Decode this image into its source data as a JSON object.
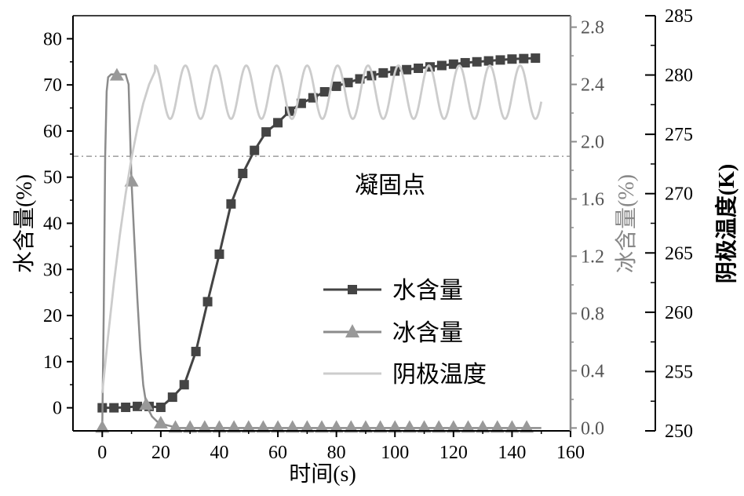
{
  "chart_data": {
    "type": "line",
    "xlabel": "时间(s)",
    "xlim": [
      -10,
      160
    ],
    "xticks": [
      0,
      20,
      40,
      60,
      80,
      100,
      120,
      140,
      160
    ],
    "axes": {
      "left": {
        "label": "水含量(%)",
        "ylim": [
          -5,
          85
        ],
        "ticks": [
          0,
          10,
          20,
          30,
          40,
          50,
          60,
          70,
          80
        ]
      },
      "right1": {
        "label": "冰含量(%)",
        "ylim": [
          -0.02,
          2.88
        ],
        "ticks": [
          "0.0",
          "0.4",
          "0.8",
          "1.2",
          "1.6",
          "2.0",
          "2.4",
          "2.8"
        ]
      },
      "right2": {
        "label": "阴极温度(K)",
        "ylim": [
          250,
          285
        ],
        "ticks": [
          250,
          255,
          260,
          265,
          270,
          275,
          280,
          285
        ]
      }
    },
    "reference_line": {
      "label": "凝固点",
      "value": 273.15,
      "axis": "right2"
    },
    "legend_position": "bottom-center",
    "series": [
      {
        "name": "水含量",
        "axis": "left",
        "color": "#444444",
        "marker": "square",
        "x": [
          0,
          4,
          8,
          12,
          16,
          20,
          24,
          28,
          32,
          36,
          40,
          44,
          48,
          52,
          56,
          60,
          64,
          68,
          72,
          76,
          80,
          84,
          88,
          92,
          96,
          100,
          104,
          108,
          112,
          116,
          120,
          124,
          128,
          132,
          136,
          140,
          144,
          148
        ],
        "y": [
          0,
          0,
          0.1,
          0.3,
          0.3,
          0.1,
          2.3,
          5,
          12.2,
          23,
          33.3,
          44.2,
          50.8,
          55.8,
          59.8,
          61.8,
          64.3,
          66,
          67.2,
          68.5,
          69.7,
          70.5,
          71.3,
          72,
          72.6,
          73,
          73.3,
          73.6,
          73.9,
          74.2,
          74.5,
          74.8,
          75,
          75.2,
          75.4,
          75.6,
          75.7,
          75.8
        ]
      },
      {
        "name": "冰含量",
        "axis": "right1",
        "color": "#8c8c8c",
        "marker": "triangle",
        "x": [
          0,
          0.5,
          1,
          1.5,
          2,
          2.5,
          3,
          5,
          7,
          8,
          9,
          10,
          11,
          12,
          13,
          14,
          15,
          16,
          17,
          18,
          19,
          20,
          22,
          24,
          26,
          150
        ],
        "y": [
          0,
          0.8,
          1.9,
          2.35,
          2.45,
          2.46,
          2.47,
          2.47,
          2.47,
          2.47,
          2.4,
          1.72,
          1.3,
          0.9,
          0.55,
          0.3,
          0.17,
          0.12,
          0.08,
          0.06,
          0.04,
          0.03,
          0.02,
          0.01,
          0,
          0
        ],
        "markers_x": [
          0,
          5,
          10,
          15,
          20,
          25,
          30,
          35,
          40,
          45,
          50,
          55,
          60,
          65,
          70,
          75,
          80,
          85,
          90,
          95,
          100,
          105,
          110,
          115,
          120,
          125,
          130,
          135,
          140,
          145
        ],
        "markers_y": [
          0,
          2.46,
          1.72,
          0.16,
          0.03,
          0,
          0,
          0,
          0,
          0,
          0,
          0,
          0,
          0,
          0,
          0,
          0,
          0,
          0,
          0,
          0,
          0,
          0,
          0,
          0,
          0,
          0,
          0,
          0,
          0
        ]
      },
      {
        "name": "阴极温度",
        "axis": "right2",
        "color": "#cccccc",
        "marker": "none",
        "x": [
          0,
          2,
          4,
          6,
          8,
          10,
          12,
          14,
          16,
          18
        ],
        "y": [
          253.2,
          258,
          262.5,
          266.5,
          270,
          273,
          275.5,
          277.6,
          279.2,
          280.3
        ],
        "oscillation": {
          "start_x": 18,
          "end_x": 150,
          "period": 10.4,
          "min": 276.3,
          "max": 280.8
        }
      }
    ]
  }
}
